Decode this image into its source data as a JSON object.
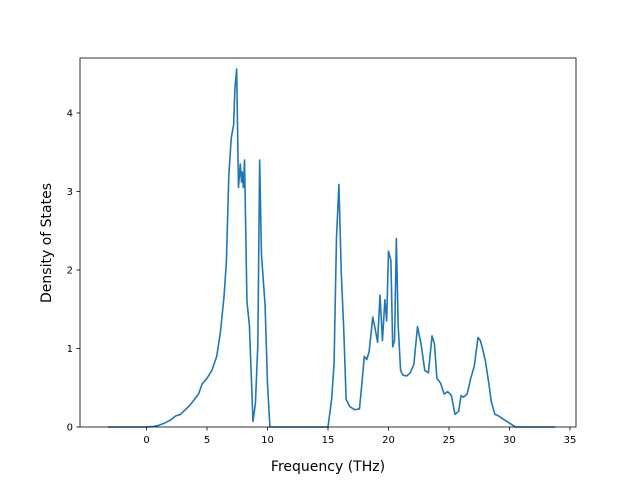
{
  "chart_data": {
    "type": "line",
    "title": "",
    "xlabel": "Frequency (THz)",
    "ylabel": "Density of States",
    "xlim": [
      -5.5,
      35.5
    ],
    "ylim": [
      0,
      4.7
    ],
    "xticks": [
      0,
      5,
      10,
      15,
      20,
      25,
      30,
      35
    ],
    "yticks": [
      0,
      1,
      2,
      3,
      4
    ],
    "grid": false,
    "series_color": "#1f77b4",
    "series": [
      {
        "x": [
          -3.2,
          -1,
          0,
          0.5,
          1,
          1.5,
          2,
          2.4,
          2.8,
          3.2,
          3.6,
          4.0,
          4.3,
          4.6,
          5.0,
          5.4,
          5.8,
          6.1,
          6.4,
          6.6,
          6.8,
          7.0,
          7.2,
          7.3,
          7.45,
          7.6,
          7.75,
          7.85,
          7.9,
          8.0,
          8.1,
          8.3,
          8.5,
          8.8,
          9.0,
          9.2,
          9.35,
          9.5,
          9.8,
          10.0,
          10.2,
          11,
          12,
          13,
          14,
          15,
          15.3,
          15.5,
          15.7,
          15.9,
          16.1,
          16.3,
          16.5,
          16.8,
          17.2,
          17.6,
          17.8,
          18.0,
          18.2,
          18.4,
          18.7,
          18.9,
          19.1,
          19.3,
          19.5,
          19.7,
          19.85,
          20.0,
          20.2,
          20.35,
          20.5,
          20.65,
          20.8,
          21.0,
          21.2,
          21.5,
          21.8,
          22.1,
          22.4,
          22.7,
          23.0,
          23.3,
          23.6,
          23.8,
          24.0,
          24.3,
          24.6,
          24.9,
          25.2,
          25.5,
          25.8,
          26.0,
          26.2,
          26.5,
          26.8,
          27.1,
          27.4,
          27.6,
          27.8,
          28.0,
          28.3,
          28.5,
          28.8,
          29.0,
          29.5,
          30.0,
          30.3,
          30.5,
          31,
          32,
          33.8
        ],
        "y": [
          0,
          0,
          0,
          0.005,
          0.02,
          0.05,
          0.09,
          0.14,
          0.16,
          0.22,
          0.28,
          0.36,
          0.42,
          0.55,
          0.62,
          0.72,
          0.9,
          1.2,
          1.65,
          2.1,
          3.2,
          3.68,
          3.85,
          4.3,
          4.56,
          3.05,
          3.35,
          3.12,
          3.25,
          3.05,
          3.4,
          1.6,
          1.3,
          0.07,
          0.3,
          1.05,
          3.4,
          2.2,
          1.55,
          0.55,
          0,
          0,
          0,
          0,
          0,
          0,
          0.35,
          0.8,
          2.4,
          3.09,
          1.95,
          1.25,
          0.35,
          0.26,
          0.22,
          0.23,
          0.55,
          0.9,
          0.86,
          0.96,
          1.4,
          1.25,
          1.08,
          1.68,
          1.1,
          1.62,
          1.35,
          2.24,
          2.12,
          1.02,
          1.1,
          2.4,
          1.3,
          0.72,
          0.66,
          0.65,
          0.69,
          0.8,
          1.28,
          1.05,
          0.72,
          0.69,
          1.16,
          1.06,
          0.62,
          0.56,
          0.42,
          0.45,
          0.4,
          0.16,
          0.2,
          0.4,
          0.38,
          0.42,
          0.62,
          0.78,
          1.14,
          1.1,
          0.98,
          0.85,
          0.55,
          0.32,
          0.16,
          0.15,
          0.1,
          0.05,
          0.02,
          0,
          0,
          0,
          0
        ]
      }
    ]
  }
}
